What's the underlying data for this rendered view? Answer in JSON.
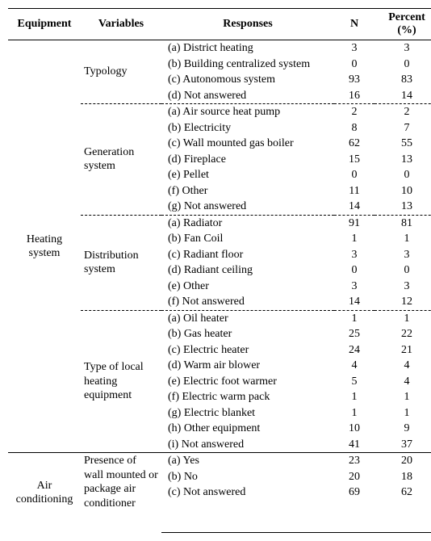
{
  "headers": {
    "equipment": "Equipment",
    "variables": "Variables",
    "responses": "Responses",
    "n": "N",
    "percent": "Percent (%)"
  },
  "groups": [
    {
      "equipment": "Heating system",
      "variables": [
        {
          "name": "Typology",
          "rows": [
            {
              "resp": "(a) District heating",
              "n": "3",
              "pct": "3"
            },
            {
              "resp": "(b) Building centralized system",
              "n": "0",
              "pct": "0"
            },
            {
              "resp": "(c) Autonomous system",
              "n": "93",
              "pct": "83"
            },
            {
              "resp": "(d) Not answered",
              "n": "16",
              "pct": "14"
            }
          ]
        },
        {
          "name": "Generation system",
          "rows": [
            {
              "resp": "(a) Air source heat pump",
              "n": "2",
              "pct": "2"
            },
            {
              "resp": "(b) Electricity",
              "n": "8",
              "pct": "7"
            },
            {
              "resp": "(c) Wall mounted gas boiler",
              "n": "62",
              "pct": "55"
            },
            {
              "resp": "(d) Fireplace",
              "n": "15",
              "pct": "13"
            },
            {
              "resp": "(e) Pellet",
              "n": "0",
              "pct": "0"
            },
            {
              "resp": "(f) Other",
              "n": "11",
              "pct": "10"
            },
            {
              "resp": "(g) Not answered",
              "n": "14",
              "pct": "13"
            }
          ]
        },
        {
          "name": "Distribution system",
          "rows": [
            {
              "resp": "(a)   Radiator",
              "n": "91",
              "pct": "81"
            },
            {
              "resp": "(b)   Fan Coil",
              "n": "1",
              "pct": "1"
            },
            {
              "resp": "(c)   Radiant floor",
              "n": "3",
              "pct": "3"
            },
            {
              "resp": "(d)   Radiant ceiling",
              "n": "0",
              "pct": "0"
            },
            {
              "resp": "(e)   Other",
              "n": "3",
              "pct": "3"
            },
            {
              "resp": "(f)   Not answered",
              "n": "14",
              "pct": "12"
            }
          ]
        },
        {
          "name": "Type of local heating equipment",
          "rows": [
            {
              "resp": "(a) Oil heater",
              "n": "1",
              "pct": "1"
            },
            {
              "resp": "(b) Gas heater",
              "n": "25",
              "pct": "22"
            },
            {
              "resp": "(c) Electric heater",
              "n": "24",
              "pct": "21"
            },
            {
              "resp": "(d) Warm air blower",
              "n": "4",
              "pct": "4"
            },
            {
              "resp": "(e) Electric foot warmer",
              "n": "5",
              "pct": "4"
            },
            {
              "resp": "(f) Electric warm pack",
              "n": "1",
              "pct": "1"
            },
            {
              "resp": "(g) Electric blanket",
              "n": "1",
              "pct": "1"
            },
            {
              "resp": "(h) Other equipment",
              "n": "10",
              "pct": "9"
            },
            {
              "resp": "(i) Not answered",
              "n": "41",
              "pct": "37"
            }
          ]
        }
      ]
    },
    {
      "equipment": "Air conditioning",
      "variables": [
        {
          "name": "Presence of wall mounted or package air conditioner",
          "rows": [
            {
              "resp": "(a)   Yes",
              "n": "23",
              "pct": "20"
            },
            {
              "resp": "(b)   No",
              "n": "20",
              "pct": "18"
            },
            {
              "resp": "(c)   Not answered",
              "n": "69",
              "pct": "62"
            }
          ]
        }
      ]
    }
  ]
}
